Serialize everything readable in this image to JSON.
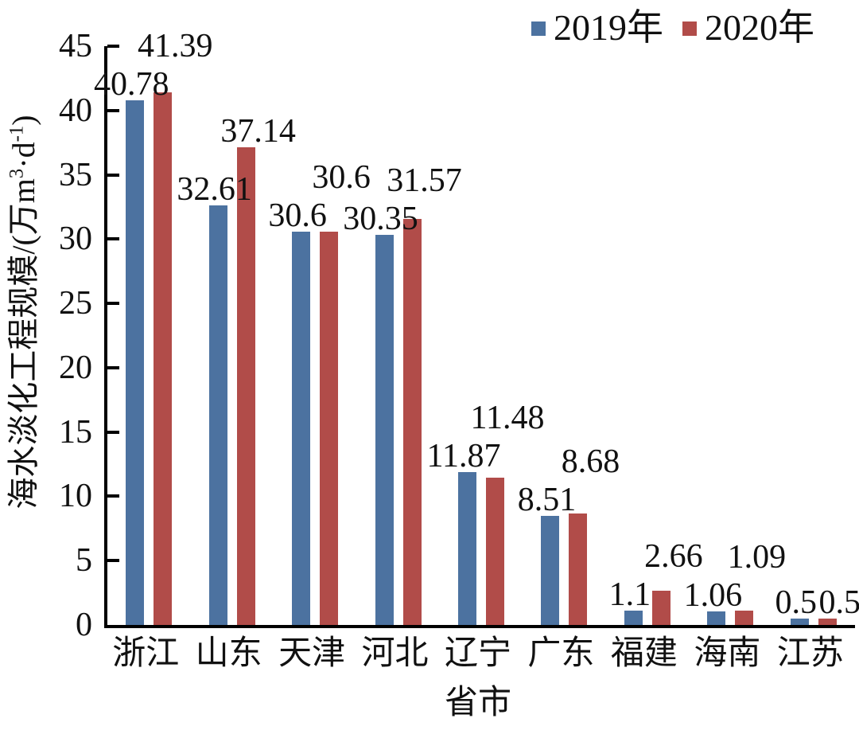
{
  "chart_data": {
    "type": "bar",
    "title": "",
    "categories": [
      "浙江",
      "山东",
      "天津",
      "河北",
      "辽宁",
      "广东",
      "福建",
      "海南",
      "江苏"
    ],
    "series": [
      {
        "name": "2019年",
        "color": "#4C72A0",
        "values": [
          40.78,
          32.61,
          30.6,
          30.35,
          11.87,
          8.51,
          1.1,
          1.06,
          0.5
        ],
        "value_labels": [
          "40.78",
          "32.61",
          "30.6",
          "30.35",
          "11.87",
          "8.51",
          "1.1",
          "1.06",
          "0.5"
        ]
      },
      {
        "name": "2020年",
        "color": "#B14C49",
        "values": [
          41.39,
          37.14,
          30.6,
          31.57,
          11.48,
          8.68,
          2.66,
          1.09,
          0.5
        ],
        "value_labels": [
          "41.39",
          "37.14",
          "30.6",
          "31.57",
          "11.48",
          "8.68",
          "2.66",
          "1.09",
          "0.5"
        ]
      }
    ],
    "xlabel": "省市",
    "ylabel": "海水淡化工程规模/(万m³·d⁻¹)",
    "ylabel_parts": {
      "p1": "海水淡化工程规模/(万m",
      "sup1": "3",
      "p2": "·d",
      "sup2": "-1",
      "p3": ")"
    },
    "ylim": [
      0,
      45
    ],
    "yticks": [
      0,
      5,
      10,
      15,
      20,
      25,
      30,
      35,
      40,
      45
    ],
    "grid": false,
    "legend_position": "top-right",
    "axis_color": "#000000",
    "text_color": "#111111"
  }
}
